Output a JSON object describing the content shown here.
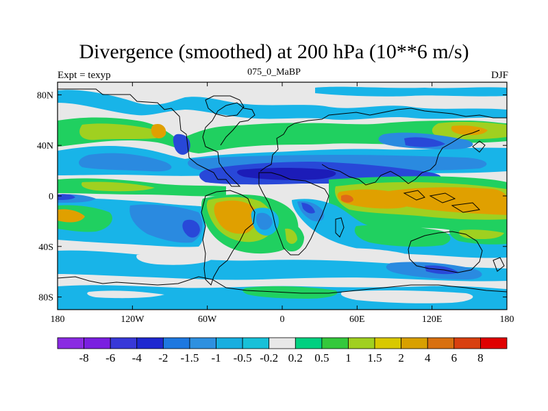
{
  "title": "Divergence (smoothed) at 200 hPa (10**6 m/s)",
  "subtitle_left": "Expt = texyp",
  "subtitle_center": "075_0_MaBP",
  "subtitle_right": "DJF",
  "lon_ticks": [
    {
      "value": -180,
      "label": "180"
    },
    {
      "value": -120,
      "label": "120W"
    },
    {
      "value": -60,
      "label": "60W"
    },
    {
      "value": 0,
      "label": "0"
    },
    {
      "value": 60,
      "label": "60E"
    },
    {
      "value": 120,
      "label": "120E"
    },
    {
      "value": 180,
      "label": "180"
    }
  ],
  "lat_ticks": [
    {
      "value": 80,
      "label": "80N"
    },
    {
      "value": 40,
      "label": "40N"
    },
    {
      "value": 0,
      "label": "0"
    },
    {
      "value": -40,
      "label": "40S"
    },
    {
      "value": -80,
      "label": "80S"
    }
  ],
  "colorbar": {
    "colors": [
      "#8a2be2",
      "#7a1fe0",
      "#3838d8",
      "#1e28d0",
      "#1e78e0",
      "#2e90e0",
      "#18aee0",
      "#18c0d8",
      "#e8e8e8",
      "#00d080",
      "#34c83c",
      "#a0d020",
      "#d8c800",
      "#d8a000",
      "#d87010",
      "#d84010",
      "#e00000"
    ],
    "labels": [
      "-8",
      "-6",
      "-4",
      "-2",
      "-1.5",
      "-1",
      "-0.5",
      "-0.2",
      "0.2",
      "0.5",
      "1",
      "1.5",
      "2",
      "4",
      "6",
      "8"
    ]
  },
  "colors": {
    "neutral": "#e8e8e8",
    "light_blue": "#18b4e8",
    "mid_blue": "#2a8ae0",
    "deep_blue": "#2848d8",
    "darkest_blue": "#1c1cb8",
    "green": "#20d060",
    "yellow_green": "#a0d020",
    "orange": "#e0a000",
    "red_orange": "#e06818"
  }
}
